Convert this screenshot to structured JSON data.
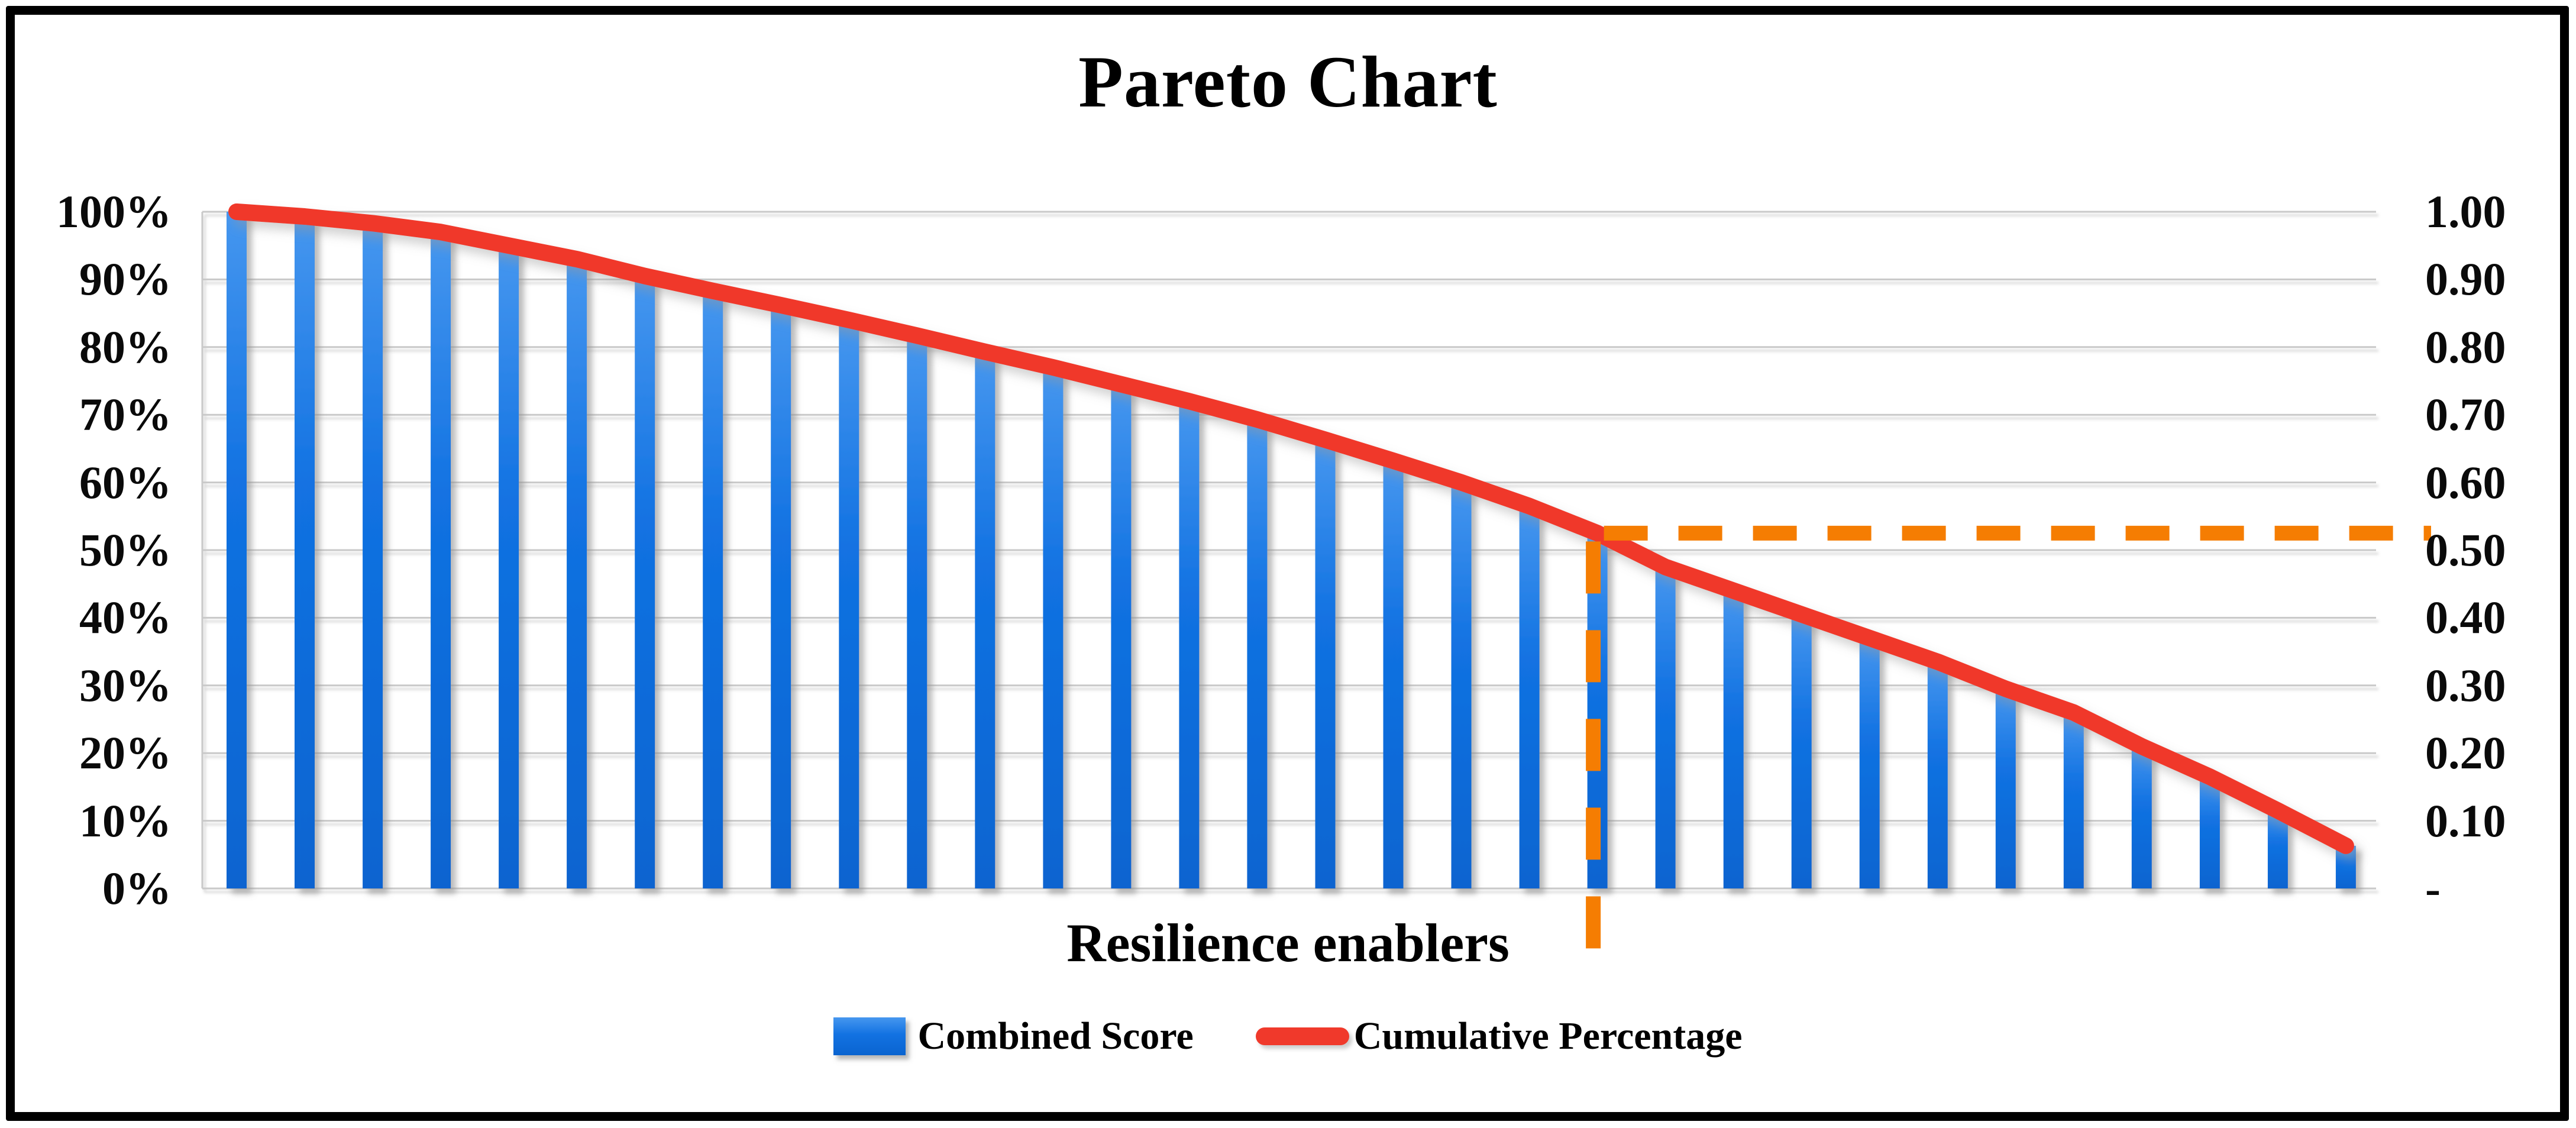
{
  "title": "Pareto Chart",
  "x_axis_label": "Resilience enablers",
  "legend": [
    {
      "label": "Combined Score",
      "swatch": "blue-bar-swatch"
    },
    {
      "label": "Cumulative Percentage",
      "swatch": "red-line-swatch"
    }
  ],
  "left_axis_ticks": [
    "100%",
    "90%",
    "80%",
    "70%",
    "60%",
    "50%",
    "40%",
    "30%",
    "20%",
    "10%",
    "0%"
  ],
  "right_axis_ticks": [
    "1.00",
    "0.90",
    "0.80",
    "0.70",
    "0.60",
    "0.50",
    "0.40",
    "0.30",
    "0.20",
    "0.10",
    "-"
  ],
  "colors": {
    "bar_blue_top": "#4697EF",
    "bar_blue": "#1272E2",
    "bar_blue_bottom": "#0A64D0",
    "line_red": "#F0392B",
    "dash_orange": "#F57D02",
    "gridline_gray": "#C9C9C9",
    "frame_black": "#000000",
    "background": "#FFFFFF"
  },
  "chart_data": {
    "type": "pareto",
    "title": "Pareto Chart",
    "xlabel": "Resilience enablers",
    "num_categories": 32,
    "left_axis": {
      "format": "percent",
      "ticks": [
        "100%",
        "90%",
        "80%",
        "70%",
        "60%",
        "50%",
        "40%",
        "30%",
        "20%",
        "10%",
        "0%"
      ],
      "range_percent": [
        0,
        100
      ]
    },
    "right_axis": {
      "ticks": [
        "1.00",
        "0.90",
        "0.80",
        "0.70",
        "0.60",
        "0.50",
        "0.40",
        "0.30",
        "0.20",
        "0.10",
        "-"
      ],
      "range": [
        0,
        1
      ]
    },
    "grid": "horizontal-only",
    "legend_position": "bottom",
    "series": [
      {
        "name": "Combined Score",
        "type": "bar",
        "values_percent": [
          100,
          99.3,
          98.3,
          97,
          95,
          93,
          90.5,
          88.3,
          86.2,
          84,
          81.7,
          79.3,
          77,
          74.5,
          72,
          69.3,
          66.3,
          63.2,
          60,
          56.5,
          52.5,
          47.5,
          44,
          40.5,
          37,
          33.5,
          29.5,
          26,
          21,
          16.5,
          11.5,
          6.3
        ]
      },
      {
        "name": "Cumulative Percentage",
        "type": "line",
        "values_percent": [
          100,
          99.3,
          98.3,
          97,
          95,
          93,
          90.5,
          88.3,
          86.2,
          84,
          81.7,
          79.3,
          77,
          74.5,
          72,
          69.3,
          66.3,
          63.2,
          60,
          56.5,
          52.5,
          47.5,
          44,
          40.5,
          37,
          33.5,
          29.5,
          26,
          21,
          16.5,
          11.5,
          6.3
        ]
      }
    ],
    "annotations": {
      "horizontal_dashed_line_percent": 52.5,
      "vertical_dashed_line_category": 21,
      "dashed_line_style": "orange-dashed"
    }
  }
}
